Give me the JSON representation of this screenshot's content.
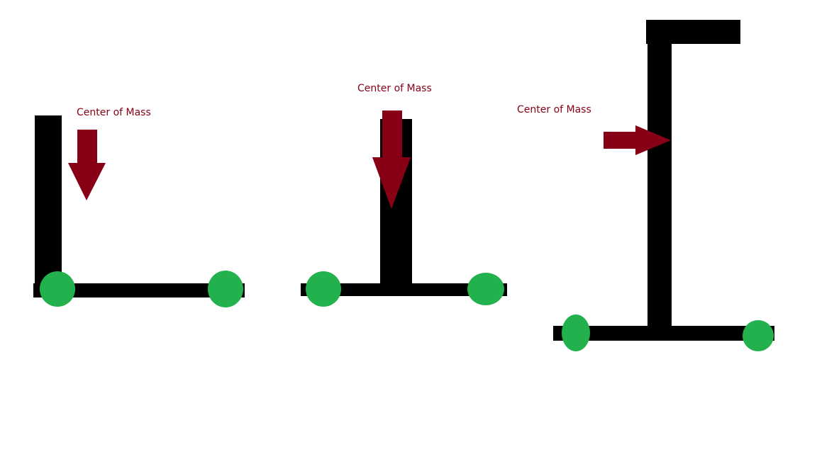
{
  "colors": {
    "background": "#ffffff",
    "bar": "#000000",
    "support": "#22b14c",
    "arrow": "#880015"
  },
  "figures": [
    {
      "shape": "L",
      "label": "Center of Mass",
      "arrow_direction": "down",
      "supports": 2
    },
    {
      "shape": "inverted-T",
      "label": "Center of Mass",
      "arrow_direction": "down",
      "supports": 2
    },
    {
      "shape": "I",
      "label": "Center of Mass",
      "arrow_direction": "right",
      "supports": 2
    }
  ]
}
